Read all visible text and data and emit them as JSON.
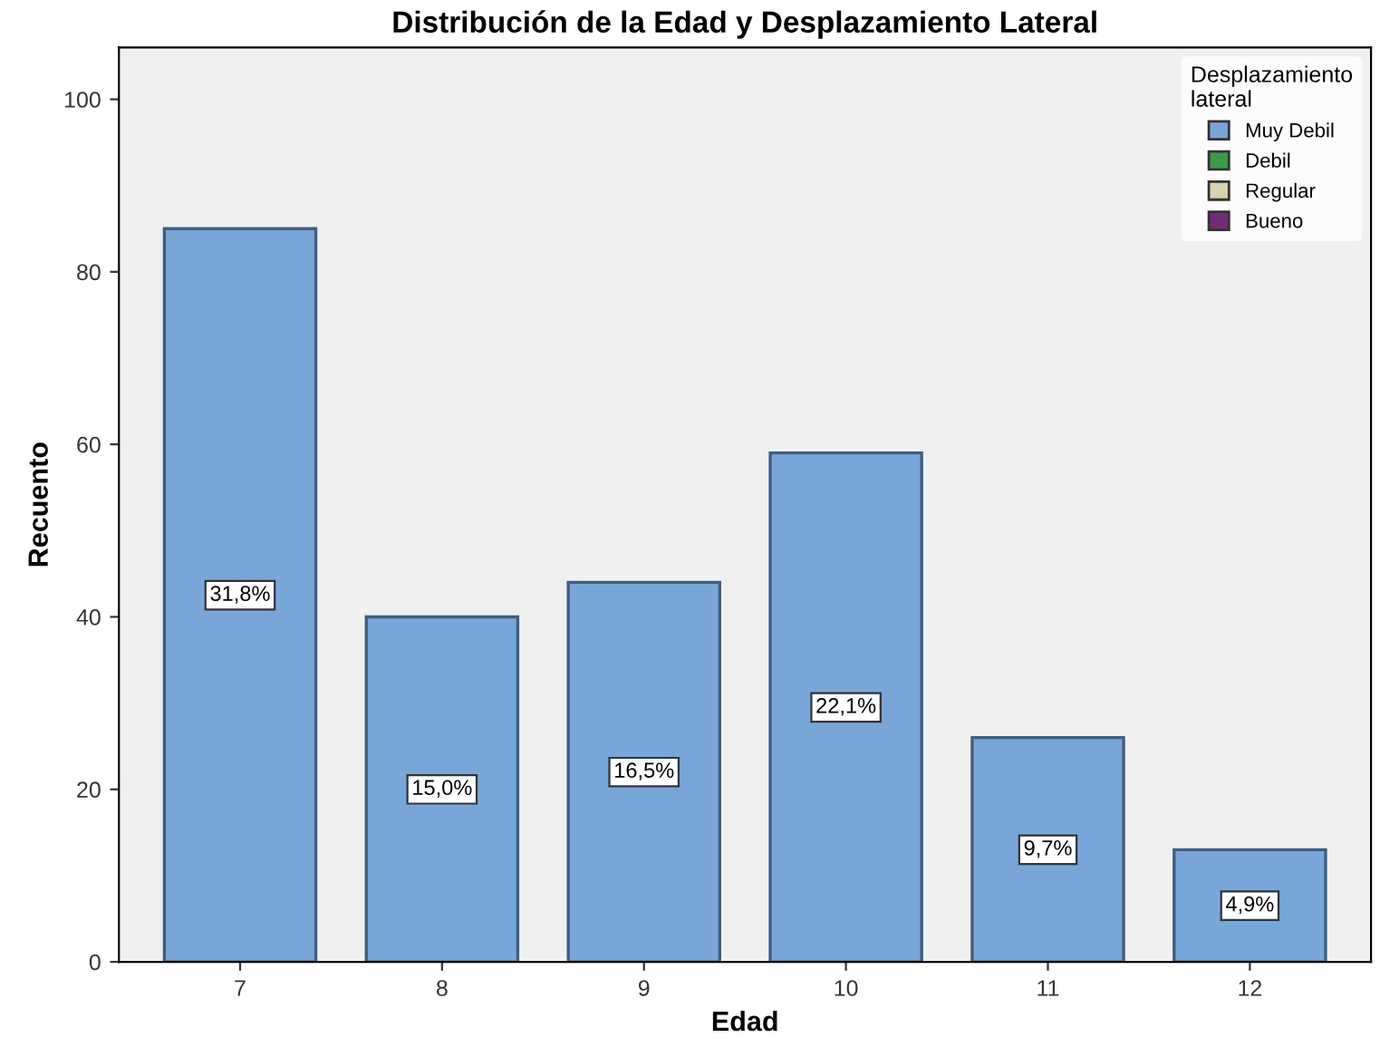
{
  "chart_data": {
    "type": "bar",
    "title": "Distribución de la Edad y Desplazamiento Lateral",
    "xlabel": "Edad",
    "ylabel": "Recuento",
    "legend_title": "Desplazamiento\nlateral",
    "categories": [
      "7",
      "8",
      "9",
      "10",
      "11",
      "12"
    ],
    "stacked": true,
    "series": [
      {
        "name": "Muy Debil",
        "color": "#78a6d8",
        "values": [
          85,
          40,
          44,
          59,
          26,
          13
        ]
      },
      {
        "name": "Debil",
        "color": "#3a9a4a",
        "values": [
          null,
          null,
          null,
          null,
          null,
          null
        ]
      },
      {
        "name": "Regular",
        "color": "#d8d2b0",
        "values": [
          null,
          null,
          null,
          null,
          null,
          null
        ]
      },
      {
        "name": "Bueno",
        "color": "#742a78",
        "values": [
          null,
          null,
          null,
          null,
          null,
          null
        ]
      }
    ],
    "annotations": [
      {
        "text": "31,8%",
        "x": "7",
        "y": 42.5
      },
      {
        "text": "15,0%",
        "x": "8",
        "y": 20
      },
      {
        "text": "16,5%",
        "x": "9",
        "y": 22
      },
      {
        "text": "22,1%",
        "x": "10",
        "y": 29.5
      },
      {
        "text": "9,7%",
        "x": "11",
        "y": 13
      },
      {
        "text": "4,9%",
        "x": "12",
        "y": 6.5
      }
    ],
    "ylim": [
      0,
      106
    ],
    "yticks": [
      0,
      20,
      40,
      60,
      80,
      100
    ],
    "grid": false,
    "legend": "top right"
  }
}
